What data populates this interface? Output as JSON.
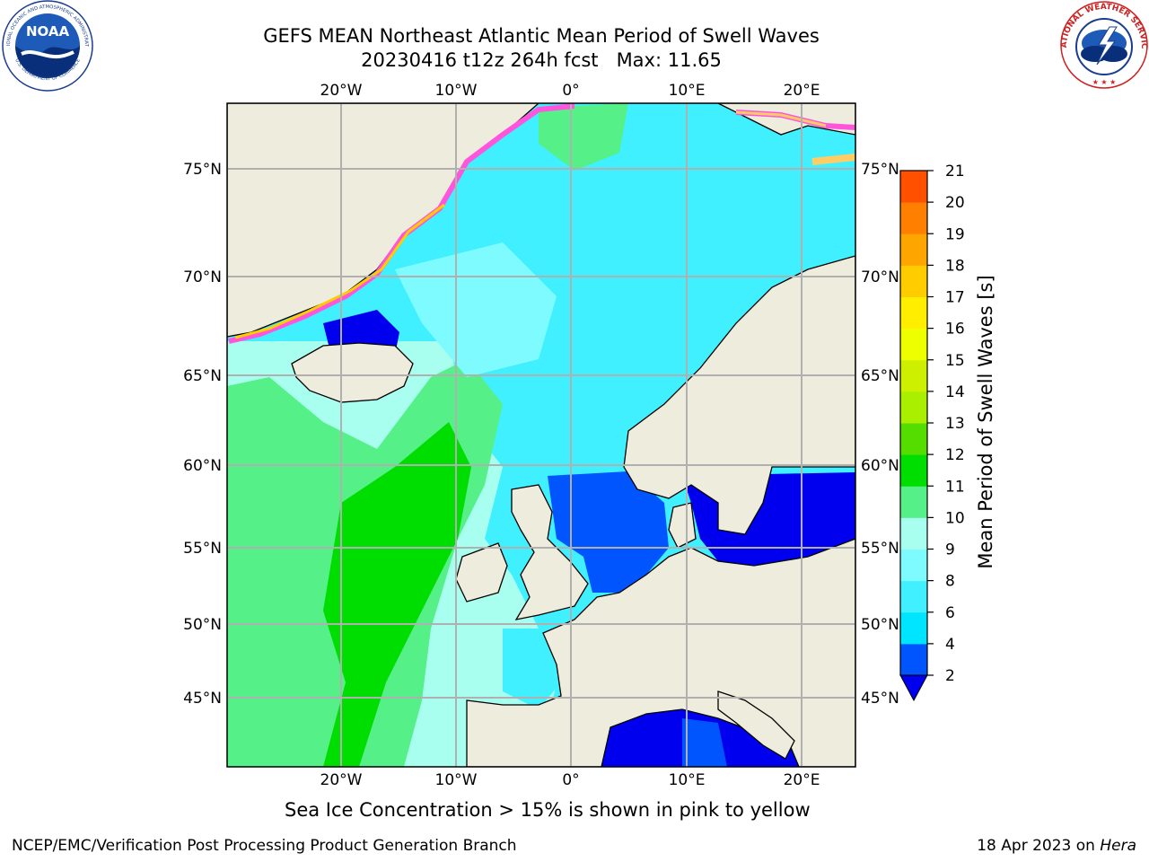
{
  "title": {
    "line1": "GEFS MEAN Northeast Atlantic Mean Period of Swell Waves",
    "line2": "20230416 t12z 264h fcst   Max: 11.65"
  },
  "logos": {
    "left": "noaa-logo",
    "right": "nws-logo"
  },
  "map": {
    "lon_labels": [
      "20°W",
      "10°W",
      "0°",
      "10°E",
      "20°E"
    ],
    "lat_labels": [
      "75°N",
      "70°N",
      "65°N",
      "60°N",
      "55°N",
      "50°N",
      "45°N"
    ],
    "colors": {
      "land": "#eeecdc",
      "gridline": "#b0b0b0",
      "coast": "#000000"
    }
  },
  "colorbar": {
    "label": "Mean Period of Swell Waves [s]",
    "ticks": [
      "2",
      "4",
      "6",
      "8",
      "9",
      "10",
      "11",
      "12",
      "13",
      "14",
      "15",
      "16",
      "17",
      "18",
      "19",
      "20",
      "21"
    ],
    "colors": [
      "#0055ff",
      "#00e5ff",
      "#40f0ff",
      "#7dfbff",
      "#a8fff0",
      "#55f088",
      "#00dd00",
      "#55dd00",
      "#aaee00",
      "#ccf000",
      "#eeff00",
      "#ffee00",
      "#ffcc00",
      "#ffa500",
      "#ff8000",
      "#ff5000",
      "#ff2000",
      "#ff0000"
    ],
    "under_color": "#0000ee"
  },
  "ice_note": "Sea Ice Concentration > 15% is shown in pink to yellow",
  "footer": {
    "left": "NCEP/EMC/Verification Post Processing Product Generation Branch",
    "date": "18 Apr 2023 on ",
    "host": "Hera"
  }
}
